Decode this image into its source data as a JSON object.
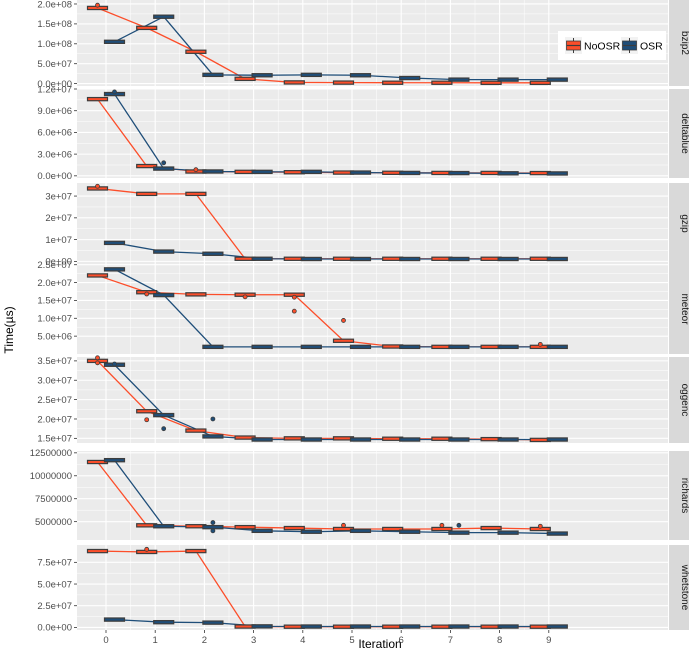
{
  "chart_data": {
    "type": "line",
    "xlabel": "Iteration",
    "ylabel": "Time(µs)",
    "x": [
      0,
      1,
      2,
      3,
      4,
      5,
      6,
      7,
      8,
      9
    ],
    "x_tick_labels": [
      "0",
      "1",
      "2",
      "3",
      "4",
      "5",
      "6",
      "7",
      "8",
      "9"
    ],
    "legend": {
      "placement": "top-right",
      "entries": [
        {
          "name": "NoOSR",
          "color": "#fc4e2a"
        },
        {
          "name": "OSR",
          "color": "#1f4e79"
        }
      ]
    },
    "colors": {
      "NoOSR": "#fc4e2a",
      "OSR": "#1f4e79",
      "box": "#3d3d3d",
      "panel": "#ebebeb",
      "strip": "#d9d9d9",
      "grid": "#ffffff"
    },
    "panels": [
      {
        "name": "bzip2",
        "ylim": [
          -6000000,
          210000000
        ],
        "yticks": [
          0,
          50000000,
          100000000,
          150000000,
          200000000
        ],
        "ytick_labels": [
          "0.0e+00",
          "5.0e+07",
          "1.0e+08",
          "1.5e+08",
          "2.0e+08"
        ],
        "series": [
          {
            "name": "NoOSR",
            "values": [
              190000000,
              140000000,
              80000000,
              12000000,
              3000000,
              2500000,
              2200000,
              2200000,
              2000000,
              2000000
            ]
          },
          {
            "name": "OSR",
            "values": [
              105000000,
              168000000,
              22000000,
              21000000,
              22000000,
              21000000,
              14000000,
              10000000,
              10000000,
              10000000
            ]
          }
        ],
        "outliers": [
          {
            "series": "NoOSR",
            "x": 0,
            "value": 197000000
          }
        ]
      },
      {
        "name": "deltablue",
        "ylim": [
          -300000,
          12000000
        ],
        "yticks": [
          0,
          3000000,
          6000000,
          9000000,
          12000000
        ],
        "ytick_labels": [
          "0.0e+00",
          "3.0e+06",
          "6.0e+06",
          "9.0e+06",
          "1.2e+07"
        ],
        "series": [
          {
            "name": "NoOSR",
            "values": [
              10600000,
              1350000,
              600000,
              550000,
              500000,
              450000,
              420000,
              400000,
              400000,
              380000
            ]
          },
          {
            "name": "OSR",
            "values": [
              11300000,
              1000000,
              600000,
              550000,
              550000,
              450000,
              400000,
              380000,
              350000,
              330000
            ]
          }
        ],
        "outliers": [
          {
            "series": "OSR",
            "x": 0,
            "value": 11600000
          },
          {
            "series": "OSR",
            "x": 1,
            "value": 1800000
          },
          {
            "series": "NoOSR",
            "x": 2,
            "value": 850000
          }
        ]
      },
      {
        "name": "gzip",
        "ylim": [
          -1200000,
          36000000
        ],
        "yticks": [
          0,
          10000000,
          20000000,
          30000000
        ],
        "ytick_labels": [
          "0e+00",
          "1e+07",
          "2e+07",
          "3e+07"
        ],
        "series": [
          {
            "name": "NoOSR",
            "values": [
              33500000,
              31000000,
              31000000,
              1200000,
              1200000,
              1200000,
              1200000,
              1200000,
              1200000,
              1200000
            ]
          },
          {
            "name": "OSR",
            "values": [
              8500000,
              4500000,
              3500000,
              1200000,
              1100000,
              1100000,
              1100000,
              1100000,
              1100000,
              1100000
            ]
          }
        ],
        "outliers": [
          {
            "series": "NoOSR",
            "x": 0,
            "value": 34500000
          }
        ]
      },
      {
        "name": "meteor",
        "ylim": [
          0,
          25200000
        ],
        "yticks": [
          5000000,
          10000000,
          15000000,
          20000000,
          25000000
        ],
        "ytick_labels": [
          "5.0e+06",
          "1.0e+07",
          "1.5e+07",
          "2.0e+07",
          "2.5e+07"
        ],
        "series": [
          {
            "name": "NoOSR",
            "values": [
              22000000,
              17300000,
              16700000,
              16600000,
              16600000,
              3700000,
              2100000,
              2000000,
              2000000,
              2000000
            ]
          },
          {
            "name": "OSR",
            "values": [
              23700000,
              16500000,
              2000000,
              2000000,
              2000000,
              2000000,
              2000000,
              2000000,
              2000000,
              2000000
            ]
          }
        ],
        "outliers": [
          {
            "series": "NoOSR",
            "x": 1,
            "value": 16800000
          },
          {
            "series": "NoOSR",
            "x": 3,
            "value": 16000000
          },
          {
            "series": "NoOSR",
            "x": 4,
            "value": 15900000
          },
          {
            "series": "NoOSR",
            "x": 4,
            "value": 12000000
          },
          {
            "series": "NoOSR",
            "x": 5,
            "value": 9400000
          },
          {
            "series": "NoOSR",
            "x": 9,
            "value": 2700000
          }
        ]
      },
      {
        "name": "oggenc",
        "ylim": [
          13800000,
          36000000
        ],
        "yticks": [
          15000000,
          20000000,
          25000000,
          30000000,
          35000000
        ],
        "ytick_labels": [
          "1.5e+07",
          "2.0e+07",
          "2.5e+07",
          "3.0e+07",
          "3.5e+07"
        ],
        "series": [
          {
            "name": "NoOSR",
            "values": [
              35000000,
              22000000,
              17000000,
              15200000,
              15000000,
              15000000,
              14900000,
              14900000,
              14800000,
              14600000
            ]
          },
          {
            "name": "OSR",
            "values": [
              34000000,
              21000000,
              15500000,
              14700000,
              14700000,
              14700000,
              14700000,
              14700000,
              14700000,
              14700000
            ]
          }
        ],
        "outliers": [
          {
            "series": "NoOSR",
            "x": 0,
            "value": 35800000
          },
          {
            "series": "NoOSR",
            "x": 0,
            "value": 34500000
          },
          {
            "series": "OSR",
            "x": 0,
            "value": 34200000
          },
          {
            "series": "NoOSR",
            "x": 1,
            "value": 19800000
          },
          {
            "series": "OSR",
            "x": 1,
            "value": 17500000
          },
          {
            "series": "OSR",
            "x": 2,
            "value": 20000000
          }
        ]
      },
      {
        "name": "richards",
        "ylim": [
          3000000,
          12700000
        ],
        "yticks": [
          5000000,
          7500000,
          10000000,
          12500000
        ],
        "ytick_labels": [
          "5000000",
          "7500000",
          "10000000",
          "12500000"
        ],
        "series": [
          {
            "name": "NoOSR",
            "values": [
              11500000,
              4600000,
              4500000,
              4400000,
              4300000,
              4200000,
              4200000,
              4200000,
              4300000,
              4200000
            ]
          },
          {
            "name": "OSR",
            "values": [
              11700000,
              4500000,
              4400000,
              4000000,
              3900000,
              4000000,
              3900000,
              3800000,
              3800000,
              3700000
            ]
          }
        ],
        "outliers": [
          {
            "series": "OSR",
            "x": 2,
            "value": 4900000
          },
          {
            "series": "OSR",
            "x": 2,
            "value": 4000000
          },
          {
            "series": "NoOSR",
            "x": 5,
            "value": 4600000
          },
          {
            "series": "NoOSR",
            "x": 7,
            "value": 4600000
          },
          {
            "series": "OSR",
            "x": 7,
            "value": 4600000
          },
          {
            "series": "NoOSR",
            "x": 9,
            "value": 4500000
          }
        ]
      },
      {
        "name": "whetstone",
        "ylim": [
          -3000000,
          95000000
        ],
        "yticks": [
          0,
          25000000,
          50000000,
          75000000
        ],
        "ytick_labels": [
          "0.0e+00",
          "2.5e+07",
          "5.0e+07",
          "7.5e+07"
        ],
        "series": [
          {
            "name": "NoOSR",
            "values": [
              88000000,
              87000000,
              88000000,
              1000000,
              800000,
              800000,
              800000,
              800000,
              800000,
              800000
            ]
          },
          {
            "name": "OSR",
            "values": [
              9000000,
              6000000,
              5500000,
              1200000,
              1000000,
              1000000,
              1000000,
              1000000,
              1000000,
              1000000
            ]
          }
        ],
        "outliers": [
          {
            "series": "NoOSR",
            "x": 1,
            "value": 90000000
          }
        ]
      }
    ]
  }
}
